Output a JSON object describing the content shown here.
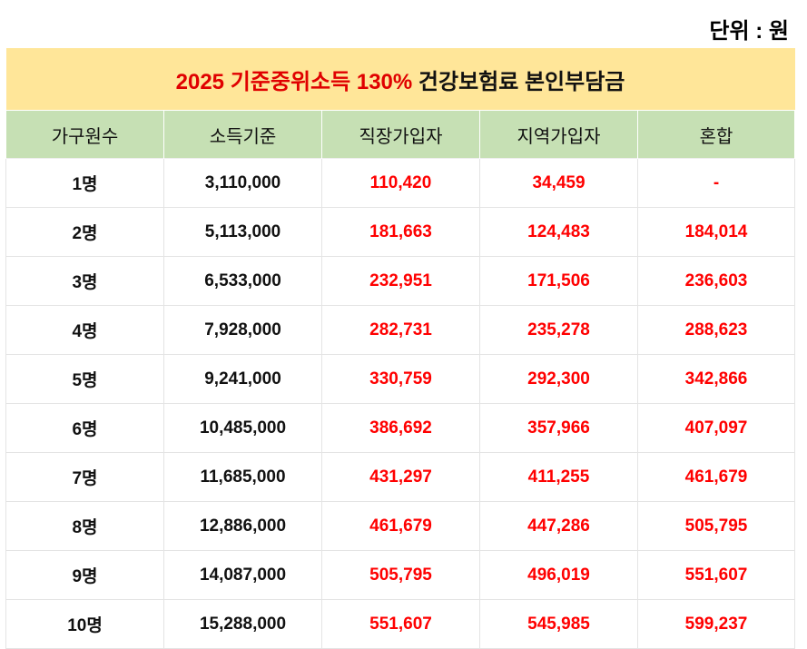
{
  "unit_label": "단위 : 원",
  "title": {
    "highlight": "2025 기준중위소득 130%",
    "rest": "건강보험료 본인부담금"
  },
  "headers": [
    "가구원수",
    "소득기준",
    "직장가입자",
    "지역가입자",
    "혼합"
  ],
  "rows": [
    [
      "1명",
      "3,110,000",
      "110,420",
      "34,459",
      "-"
    ],
    [
      "2명",
      "5,113,000",
      "181,663",
      "124,483",
      "184,014"
    ],
    [
      "3명",
      "6,533,000",
      "232,951",
      "171,506",
      "236,603"
    ],
    [
      "4명",
      "7,928,000",
      "282,731",
      "235,278",
      "288,623"
    ],
    [
      "5명",
      "9,241,000",
      "330,759",
      "292,300",
      "342,866"
    ],
    [
      "6명",
      "10,485,000",
      "386,692",
      "357,966",
      "407,097"
    ],
    [
      "7명",
      "11,685,000",
      "431,297",
      "411,255",
      "461,679"
    ],
    [
      "8명",
      "12,886,000",
      "461,679",
      "447,286",
      "505,795"
    ],
    [
      "9명",
      "14,087,000",
      "505,795",
      "496,019",
      "551,607"
    ],
    [
      "10명",
      "15,288,000",
      "551,607",
      "545,985",
      "599,237"
    ]
  ],
  "colors": {
    "title_bg": "#ffe699",
    "header_bg": "#c6e0b4",
    "accent_red": "#ff0000"
  }
}
